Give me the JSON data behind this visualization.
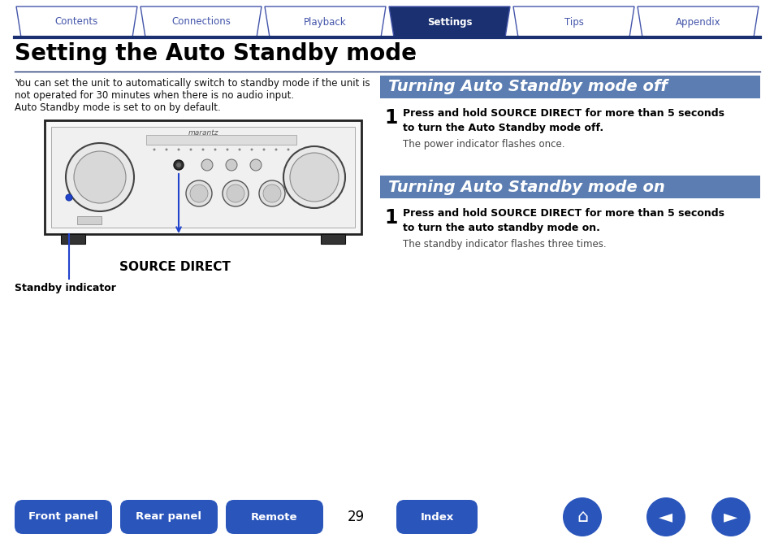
{
  "bg_color": "#ffffff",
  "tab_active_color": "#1a3070",
  "tab_inactive_color": "#ffffff",
  "tab_border_color": "#4455aa",
  "tab_labels": [
    "Contents",
    "Connections",
    "Playback",
    "Settings",
    "Tips",
    "Appendix"
  ],
  "tab_active_index": 3,
  "page_title": "Setting the Auto Standby mode",
  "separator_color": "#1a3070",
  "intro_lines": [
    "You can set the unit to automatically switch to standby mode if the unit is",
    "not operated for 30 minutes when there is no audio input.",
    "Auto Standby mode is set to on by default."
  ],
  "section1_header": "Turning Auto Standby mode off",
  "section1_header_bg": "#5b7db1",
  "section1_step_bold": "Press and hold SOURCE DIRECT for more than 5 seconds\nto turn the Auto Standby mode off.",
  "section1_step_normal": "The power indicator flashes once.",
  "section2_header": "Turning Auto Standby mode on",
  "section2_header_bg": "#5b7db1",
  "section2_step_bold": "Press and hold SOURCE DIRECT for more than 5 seconds\nto turn the auto standby mode on.",
  "section2_step_normal": "The standby indicator flashes three times.",
  "source_direct_label": "SOURCE DIRECT",
  "standby_label": "Standby indicator",
  "bottom_buttons": [
    "Front panel",
    "Rear panel",
    "Remote",
    "Index"
  ],
  "bottom_button_color": "#2a55bb",
  "page_number": "29",
  "button_text_color": "#ffffff",
  "icon_button_color": "#2a55bb"
}
